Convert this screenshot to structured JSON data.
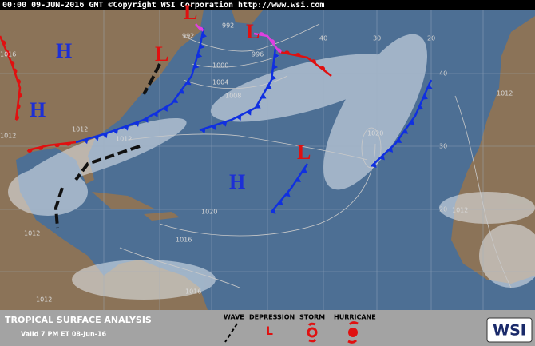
{
  "header": {
    "text": "00:00 09-JUN-2016 GMT  ©Copyright WSI Corporation  http://www.wsi.com"
  },
  "pressure_centers": [
    "H",
    "L",
    "L",
    "L",
    "H",
    "L",
    "H"
  ],
  "isobar_labels": [
    "992",
    "992",
    "996",
    "1000",
    "1004",
    "1008",
    "1012",
    "1012",
    "1012",
    "1016",
    "1020",
    "1020",
    "1016",
    "1016",
    "1012",
    "1012",
    "1012",
    "1012"
  ],
  "grid_labels": [
    "40",
    "30",
    "20",
    "40",
    "30",
    "20"
  ],
  "footer": {
    "title": "TROPICAL SURFACE ANALYSIS",
    "valid": "Valid 7 PM ET 08-Jun-16",
    "legend": [
      "WAVE",
      "DEPRESSION",
      "STORM",
      "HURRICANE"
    ],
    "depression_symbol": "L",
    "logo": "WSI"
  }
}
